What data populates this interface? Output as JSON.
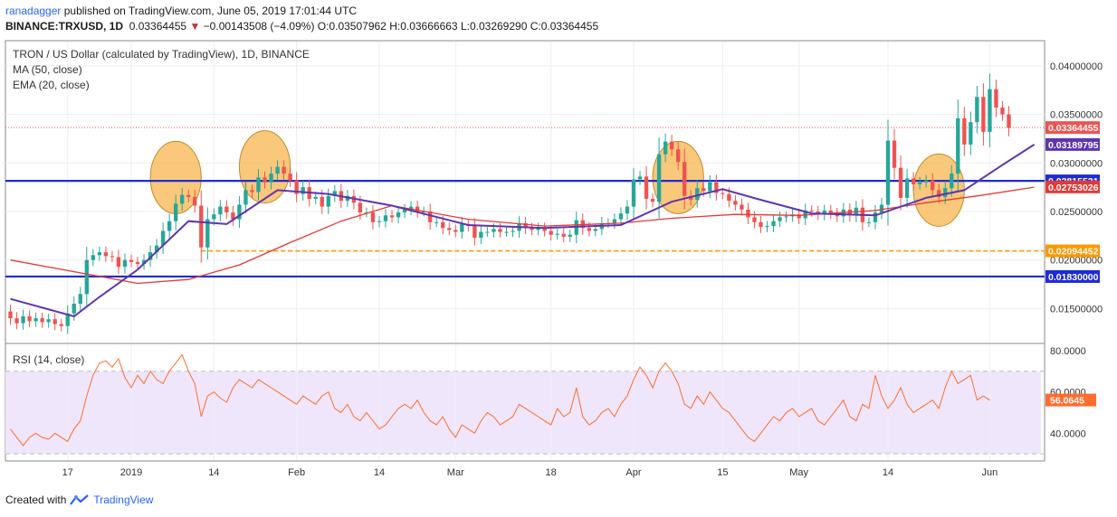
{
  "header": {
    "user": "ranadagger",
    "published": "published on TradingView.com, June 05, 2019 17:01:44 UTC",
    "symbol": "BINANCE:TRXUSD, 1D",
    "last": "0.03364455",
    "change_arrow": "▼",
    "change": "−0.00143508 (−4.09%)",
    "o_label": "O:",
    "o": "0.03507962",
    "h_label": "H:",
    "h": "0.03666663",
    "l_label": "L:",
    "l": "0.03269290",
    "c_label": "C:",
    "c": "0.03364455"
  },
  "legend": {
    "title": "TRON / US Dollar (calculated by TradingView), 1D, BINANCE",
    "ma": "MA (50, close)",
    "ema": "EMA (20, close)",
    "rsi": "RSI (14, close)"
  },
  "footer": {
    "created_with": "Created with",
    "brand": "TradingView",
    "logo_icon": "tradingview-logo-icon"
  },
  "colors": {
    "up": "#26a69a",
    "down": "#ef5350",
    "ma": "#e53935",
    "ema": "#5e35b1",
    "level": "#1e2bd6",
    "dashed": "#ff9800",
    "rsi": "#ff6d2e",
    "rsi_band": "#efe6fb",
    "zone": "#f7b64e",
    "last_label": "#ef5350",
    "ema_label": "#5e35b1",
    "level_label": "#1e2bd6",
    "support_label": "#ff9800"
  },
  "chart_data": {
    "type": "candlestick",
    "price_axis": {
      "ticks": [
        0.015,
        0.02,
        0.025,
        0.03,
        0.035,
        0.04
      ],
      "tick_labels": [
        "0.01500000",
        "0.02000000",
        "0.02500000",
        "0.03000000",
        "0.03500000",
        "0.04000000"
      ],
      "range": [
        0.0115,
        0.0425
      ]
    },
    "price_labels": [
      {
        "value": 0.03364455,
        "text": "0.03364455",
        "kind": "last"
      },
      {
        "value": 0.03189795,
        "text": "0.03189795",
        "kind": "ema"
      },
      {
        "value": 0.02815521,
        "text": "0.02815521",
        "kind": "level"
      },
      {
        "value": 0.02753026,
        "text": "0.02753026",
        "kind": "ma"
      },
      {
        "value": 0.02094452,
        "text": "0.02094452",
        "kind": "support"
      },
      {
        "value": 0.0183,
        "text": "0.01830000",
        "kind": "level"
      }
    ],
    "horizontal_levels": [
      {
        "value": 0.02815521,
        "style": "solid"
      },
      {
        "value": 0.0183,
        "style": "solid"
      },
      {
        "value": 0.02094452,
        "style": "dashed"
      }
    ],
    "x_axis": {
      "tick_labels": [
        "17",
        "2019",
        "14",
        "Feb",
        "14",
        "Mar",
        "18",
        "Apr",
        "15",
        "May",
        "14",
        "Jun"
      ],
      "tick_index": [
        9,
        19,
        32,
        45,
        58,
        70,
        85,
        98,
        112,
        124,
        138,
        154
      ]
    },
    "highlight_zones": [
      {
        "center_index": 26,
        "center_price": 0.0285
      },
      {
        "center_index": 40,
        "center_price": 0.0296
      },
      {
        "center_index": 105,
        "center_price": 0.0285
      },
      {
        "center_index": 146,
        "center_price": 0.0272
      }
    ],
    "candles": {
      "open": [
        0.0147,
        0.014,
        0.0135,
        0.0142,
        0.0137,
        0.014,
        0.0136,
        0.0139,
        0.0134,
        0.0132,
        0.0145,
        0.0155,
        0.0165,
        0.02,
        0.0205,
        0.0208,
        0.0204,
        0.0203,
        0.0193,
        0.02,
        0.0198,
        0.0196,
        0.02,
        0.0208,
        0.0215,
        0.023,
        0.024,
        0.0258,
        0.0267,
        0.0265,
        0.0256,
        0.0213,
        0.0242,
        0.0247,
        0.0255,
        0.0249,
        0.0242,
        0.0257,
        0.0272,
        0.027,
        0.0285,
        0.028,
        0.0289,
        0.0296,
        0.0289,
        0.0282,
        0.0268,
        0.0275,
        0.0263,
        0.0265,
        0.0255,
        0.0266,
        0.0271,
        0.0261,
        0.0266,
        0.0259,
        0.0249,
        0.0249,
        0.0239,
        0.024,
        0.0246,
        0.0244,
        0.0249,
        0.0252,
        0.0255,
        0.025,
        0.025,
        0.0239,
        0.0239,
        0.0233,
        0.0231,
        0.0229,
        0.0237,
        0.0235,
        0.0223,
        0.0229,
        0.0229,
        0.0232,
        0.0229,
        0.0229,
        0.023,
        0.0238,
        0.0233,
        0.0231,
        0.0233,
        0.023,
        0.0226,
        0.0227,
        0.0224,
        0.0226,
        0.0241,
        0.0233,
        0.023,
        0.0232,
        0.0238,
        0.0238,
        0.0242,
        0.0248,
        0.0255,
        0.0283,
        0.0286,
        0.0263,
        0.026,
        0.0309,
        0.0322,
        0.0314,
        0.0301,
        0.0266,
        0.0262,
        0.0274,
        0.0271,
        0.028,
        0.0269,
        0.0268,
        0.0261,
        0.0257,
        0.0252,
        0.0244,
        0.0239,
        0.0234,
        0.0235,
        0.024,
        0.0244,
        0.0245,
        0.0247,
        0.0243,
        0.0251,
        0.025,
        0.0247,
        0.0251,
        0.0248,
        0.0245,
        0.0252,
        0.0246,
        0.0254,
        0.0239,
        0.0239,
        0.0249,
        0.0257,
        0.0323,
        0.0295,
        0.0264,
        0.0284,
        0.0278,
        0.028,
        0.0282,
        0.0272,
        0.0265,
        0.0274,
        0.0289,
        0.0346,
        0.0319,
        0.0342,
        0.0368,
        0.0332,
        0.0376,
        0.0357,
        0.035
      ],
      "close": [
        0.014,
        0.0135,
        0.0142,
        0.0137,
        0.014,
        0.0136,
        0.0139,
        0.0134,
        0.0132,
        0.0145,
        0.0155,
        0.0165,
        0.02,
        0.0205,
        0.0208,
        0.0204,
        0.0203,
        0.0193,
        0.02,
        0.0198,
        0.0196,
        0.02,
        0.0208,
        0.0215,
        0.023,
        0.024,
        0.0258,
        0.0267,
        0.0265,
        0.0256,
        0.0213,
        0.0242,
        0.0247,
        0.0255,
        0.0249,
        0.0242,
        0.0257,
        0.0272,
        0.027,
        0.0285,
        0.028,
        0.0289,
        0.0296,
        0.0289,
        0.0282,
        0.0268,
        0.0275,
        0.0263,
        0.0265,
        0.0255,
        0.0266,
        0.0271,
        0.0261,
        0.0266,
        0.0259,
        0.0249,
        0.0249,
        0.0239,
        0.024,
        0.0246,
        0.0244,
        0.0249,
        0.0252,
        0.0255,
        0.025,
        0.025,
        0.0239,
        0.0239,
        0.0233,
        0.0231,
        0.0229,
        0.0237,
        0.0235,
        0.0223,
        0.0229,
        0.0229,
        0.0232,
        0.0229,
        0.0229,
        0.023,
        0.0238,
        0.0233,
        0.0231,
        0.0233,
        0.023,
        0.0226,
        0.0227,
        0.0224,
        0.0226,
        0.0241,
        0.0233,
        0.023,
        0.0232,
        0.0238,
        0.0238,
        0.0242,
        0.0248,
        0.0255,
        0.0283,
        0.0286,
        0.0263,
        0.026,
        0.0309,
        0.0322,
        0.0314,
        0.0301,
        0.0266,
        0.0262,
        0.0274,
        0.0271,
        0.028,
        0.0269,
        0.0268,
        0.0261,
        0.0257,
        0.0252,
        0.0244,
        0.0239,
        0.0234,
        0.0235,
        0.024,
        0.0244,
        0.0245,
        0.0247,
        0.0243,
        0.0251,
        0.025,
        0.0247,
        0.0251,
        0.0248,
        0.0245,
        0.0252,
        0.0246,
        0.0254,
        0.0239,
        0.0239,
        0.0249,
        0.0257,
        0.0323,
        0.0295,
        0.0264,
        0.0284,
        0.0278,
        0.028,
        0.0282,
        0.0272,
        0.0265,
        0.0274,
        0.0289,
        0.0346,
        0.0319,
        0.0342,
        0.0368,
        0.0332,
        0.0376,
        0.0357,
        0.035,
        0.0336
      ]
    },
    "ema20_points": [
      [
        0,
        0.016
      ],
      [
        10,
        0.0142
      ],
      [
        14,
        0.0162
      ],
      [
        20,
        0.019
      ],
      [
        28,
        0.024
      ],
      [
        34,
        0.0237
      ],
      [
        42,
        0.0272
      ],
      [
        50,
        0.0268
      ],
      [
        60,
        0.0256
      ],
      [
        72,
        0.0236
      ],
      [
        84,
        0.0233
      ],
      [
        96,
        0.0236
      ],
      [
        104,
        0.026
      ],
      [
        112,
        0.0273
      ],
      [
        118,
        0.0262
      ],
      [
        126,
        0.0248
      ],
      [
        136,
        0.0246
      ],
      [
        144,
        0.0264
      ],
      [
        150,
        0.0272
      ],
      [
        156,
        0.0298
      ],
      [
        161,
        0.0319
      ]
    ],
    "ma50_points": [
      [
        0,
        0.02
      ],
      [
        10,
        0.0188
      ],
      [
        20,
        0.0176
      ],
      [
        28,
        0.018
      ],
      [
        36,
        0.0195
      ],
      [
        44,
        0.0218
      ],
      [
        52,
        0.024
      ],
      [
        60,
        0.0256
      ],
      [
        72,
        0.0242
      ],
      [
        84,
        0.0235
      ],
      [
        96,
        0.0238
      ],
      [
        104,
        0.0243
      ],
      [
        114,
        0.0247
      ],
      [
        124,
        0.0246
      ],
      [
        136,
        0.0251
      ],
      [
        144,
        0.0259
      ],
      [
        152,
        0.0266
      ],
      [
        161,
        0.0275
      ]
    ],
    "rsi": {
      "tick_labels": [
        "80.0000",
        "60.0000",
        "40.0000"
      ],
      "ticks": [
        80,
        60,
        40
      ],
      "band": [
        30,
        70
      ],
      "range": [
        27,
        83
      ],
      "last_label": "56.0645",
      "last_value": 56.0645,
      "values": [
        42,
        38,
        34,
        38,
        40,
        38,
        37,
        40,
        38,
        36,
        42,
        46,
        58,
        68,
        74,
        75,
        72,
        76,
        67,
        62,
        68,
        64,
        70,
        66,
        64,
        70,
        74,
        78,
        70,
        64,
        48,
        58,
        60,
        57,
        55,
        62,
        66,
        64,
        62,
        66,
        64,
        62,
        60,
        58,
        56,
        54,
        58,
        56,
        54,
        58,
        60,
        52,
        50,
        54,
        48,
        46,
        50,
        46,
        42,
        44,
        48,
        52,
        54,
        52,
        56,
        50,
        46,
        44,
        48,
        42,
        38,
        44,
        42,
        40,
        46,
        50,
        48,
        44,
        46,
        48,
        54,
        52,
        50,
        48,
        46,
        44,
        52,
        48,
        50,
        62,
        48,
        44,
        46,
        50,
        52,
        48,
        54,
        58,
        66,
        72,
        68,
        62,
        70,
        74,
        70,
        64,
        54,
        52,
        58,
        54,
        60,
        56,
        52,
        50,
        46,
        42,
        38,
        36,
        40,
        44,
        48,
        46,
        50,
        52,
        48,
        50,
        52,
        46,
        44,
        48,
        52,
        56,
        48,
        46,
        54,
        52,
        68,
        58,
        52,
        56,
        62,
        54,
        50,
        52,
        54,
        56,
        52,
        62,
        70,
        64,
        66,
        68,
        56,
        58,
        56
      ]
    }
  }
}
